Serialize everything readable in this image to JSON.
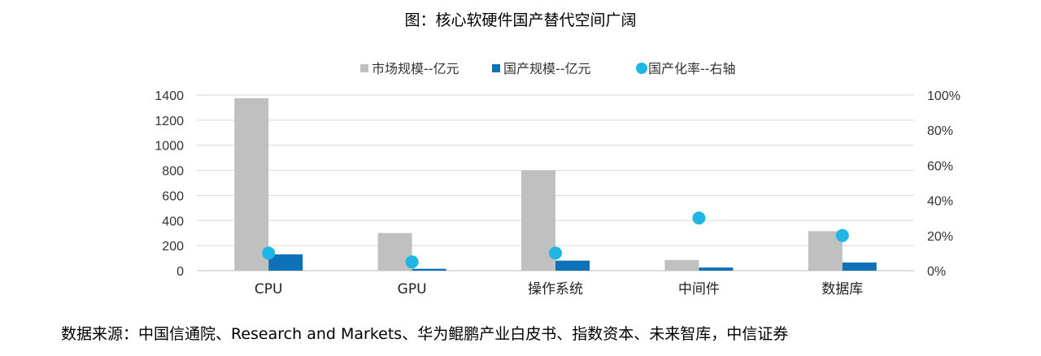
{
  "chart_data": {
    "type": "bar",
    "title": "图：核心软硬件国产替代空间广阔",
    "categories": [
      "CPU",
      "GPU",
      "操作系统",
      "中间件",
      "数据库"
    ],
    "series": [
      {
        "name": "市场规模--亿元",
        "kind": "bar",
        "axis": "left",
        "color": "#c0c0c0",
        "values": [
          1375,
          300,
          800,
          85,
          315
        ]
      },
      {
        "name": "国产规模--亿元",
        "kind": "bar",
        "axis": "left",
        "color": "#0e72b8",
        "values": [
          130,
          15,
          80,
          25,
          65
        ]
      },
      {
        "name": "国产化率--右轴",
        "kind": "scatter",
        "axis": "right",
        "color": "#1fb6e6",
        "values": [
          0.1,
          0.05,
          0.1,
          0.3,
          0.2
        ]
      }
    ],
    "y_left": {
      "min": 0,
      "max": 1400,
      "ticks": [
        "0",
        "200",
        "400",
        "600",
        "800",
        "1000",
        "1200",
        "1400"
      ]
    },
    "y_right": {
      "min": 0,
      "max": 1,
      "ticks": [
        "0%",
        "20%",
        "40%",
        "60%",
        "80%",
        "100%"
      ]
    },
    "grid": true,
    "legend_position": "top"
  },
  "source": "数据来源：中国信通院、Research and Markets、华为鲲鹏产业白皮书、指数资本、未来智库，中信证券"
}
